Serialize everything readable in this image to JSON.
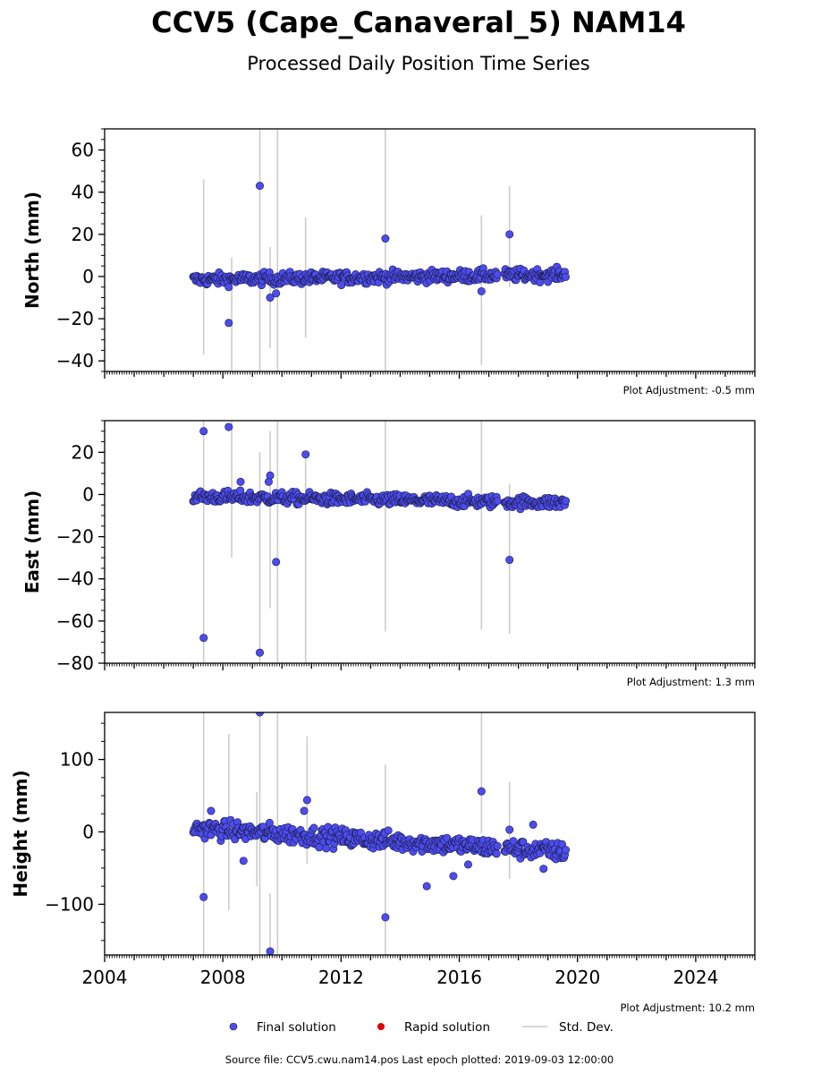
{
  "title": "CCV5 (Cape_Canaveral_5) NAM14",
  "subtitle": "Processed Daily Position Time Series",
  "footer": "Source file: CCV5.cwu.nam14.pos  Last epoch plotted: 2019-09-03 12:00:00",
  "legend": {
    "final": "Final solution",
    "rapid": "Rapid solution",
    "stddev": "Std. Dev."
  },
  "colors": {
    "final": "#4c4cf0",
    "rapid": "#e00000",
    "stddev": "#cccccc"
  },
  "chart_data": [
    {
      "type": "scatter",
      "ylabel": "North (mm)",
      "adjustment": "Plot Adjustment: -0.5 mm",
      "xlim": [
        2004,
        2026
      ],
      "ylim": [
        -45,
        70
      ],
      "yticks": [
        -40,
        -20,
        0,
        20,
        40,
        60
      ],
      "trend": {
        "x": [
          2007.0,
          2019.6
        ],
        "y": [
          -1.5,
          1.0
        ]
      },
      "scatter_amp": 2.0,
      "gap": [
        2017.3,
        2017.5
      ],
      "outliers": [
        {
          "x": 2008.2,
          "y": -22
        },
        {
          "x": 2009.25,
          "y": 43
        },
        {
          "x": 2009.6,
          "y": -10
        },
        {
          "x": 2009.8,
          "y": -8
        },
        {
          "x": 2013.5,
          "y": 18
        },
        {
          "x": 2016.75,
          "y": -7
        },
        {
          "x": 2017.7,
          "y": 20
        }
      ],
      "stddev_bars": [
        {
          "x": 2007.35,
          "lo": -37,
          "hi": 46
        },
        {
          "x": 2008.3,
          "lo": -45,
          "hi": 9
        },
        {
          "x": 2009.25,
          "lo": -45,
          "hi": 70
        },
        {
          "x": 2009.6,
          "lo": -34,
          "hi": 14
        },
        {
          "x": 2009.85,
          "lo": -45,
          "hi": 70
        },
        {
          "x": 2010.8,
          "lo": -29,
          "hi": 28
        },
        {
          "x": 2013.5,
          "lo": -45,
          "hi": 70
        },
        {
          "x": 2016.75,
          "lo": -42,
          "hi": 29
        },
        {
          "x": 2017.7,
          "lo": -5,
          "hi": 43
        }
      ]
    },
    {
      "type": "scatter",
      "ylabel": "East (mm)",
      "adjustment": "Plot Adjustment: 1.3 mm",
      "xlim": [
        2004,
        2026
      ],
      "ylim": [
        -80,
        35
      ],
      "yticks": [
        -80,
        -60,
        -40,
        -20,
        0,
        20
      ],
      "trend": {
        "x": [
          2007.0,
          2019.6
        ],
        "y": [
          -1.0,
          -4.0
        ]
      },
      "scatter_amp": 2.0,
      "gap": [
        2017.3,
        2017.5
      ],
      "outliers": [
        {
          "x": 2007.35,
          "y": 30
        },
        {
          "x": 2007.35,
          "y": -68
        },
        {
          "x": 2008.2,
          "y": 32
        },
        {
          "x": 2008.6,
          "y": 6
        },
        {
          "x": 2009.25,
          "y": -75
        },
        {
          "x": 2009.6,
          "y": 9
        },
        {
          "x": 2009.55,
          "y": 6
        },
        {
          "x": 2009.8,
          "y": -32
        },
        {
          "x": 2010.8,
          "y": 19
        },
        {
          "x": 2017.7,
          "y": -31
        }
      ],
      "stddev_bars": [
        {
          "x": 2007.35,
          "lo": -80,
          "hi": 35
        },
        {
          "x": 2008.3,
          "lo": -30,
          "hi": 35
        },
        {
          "x": 2009.25,
          "lo": -80,
          "hi": 20
        },
        {
          "x": 2009.6,
          "lo": -54,
          "hi": 30
        },
        {
          "x": 2009.85,
          "lo": -80,
          "hi": 35
        },
        {
          "x": 2010.8,
          "lo": -80,
          "hi": 20
        },
        {
          "x": 2013.5,
          "lo": -65,
          "hi": 35
        },
        {
          "x": 2016.75,
          "lo": -64,
          "hi": 35
        },
        {
          "x": 2017.7,
          "lo": -66,
          "hi": 5
        }
      ]
    },
    {
      "type": "scatter",
      "ylabel": "Height (mm)",
      "adjustment": "Plot Adjustment: 10.2 mm",
      "xlim": [
        2004,
        2026
      ],
      "ylim": [
        -170,
        165
      ],
      "yticks": [
        -100,
        0,
        100
      ],
      "trend": {
        "x": [
          2007.0,
          2019.6
        ],
        "y": [
          5,
          -28
        ]
      },
      "scatter_amp": 9,
      "gap": [
        2017.3,
        2017.5
      ],
      "outliers": [
        {
          "x": 2007.35,
          "y": -90
        },
        {
          "x": 2007.6,
          "y": 29
        },
        {
          "x": 2008.7,
          "y": -40
        },
        {
          "x": 2009.25,
          "y": 165
        },
        {
          "x": 2009.6,
          "y": -165
        },
        {
          "x": 2010.75,
          "y": 29
        },
        {
          "x": 2010.85,
          "y": 44
        },
        {
          "x": 2013.5,
          "y": -118
        },
        {
          "x": 2014.9,
          "y": -75
        },
        {
          "x": 2015.8,
          "y": -61
        },
        {
          "x": 2016.3,
          "y": -45
        },
        {
          "x": 2016.75,
          "y": 56
        },
        {
          "x": 2017.7,
          "y": 3
        },
        {
          "x": 2018.5,
          "y": 10
        },
        {
          "x": 2018.85,
          "y": -51
        }
      ],
      "stddev_bars": [
        {
          "x": 2007.35,
          "lo": -170,
          "hi": 165
        },
        {
          "x": 2008.2,
          "lo": -108,
          "hi": 135
        },
        {
          "x": 2009.15,
          "lo": -75,
          "hi": 55
        },
        {
          "x": 2009.25,
          "lo": -170,
          "hi": 165
        },
        {
          "x": 2009.6,
          "lo": -170,
          "hi": -85
        },
        {
          "x": 2009.85,
          "lo": -170,
          "hi": 165
        },
        {
          "x": 2010.85,
          "lo": -44,
          "hi": 132
        },
        {
          "x": 2013.5,
          "lo": -170,
          "hi": 93
        },
        {
          "x": 2016.75,
          "lo": -2,
          "hi": 165
        },
        {
          "x": 2017.7,
          "lo": -65,
          "hi": 69
        }
      ]
    }
  ],
  "x_axis": {
    "ticks": [
      2004,
      2008,
      2012,
      2016,
      2020,
      2024
    ]
  }
}
